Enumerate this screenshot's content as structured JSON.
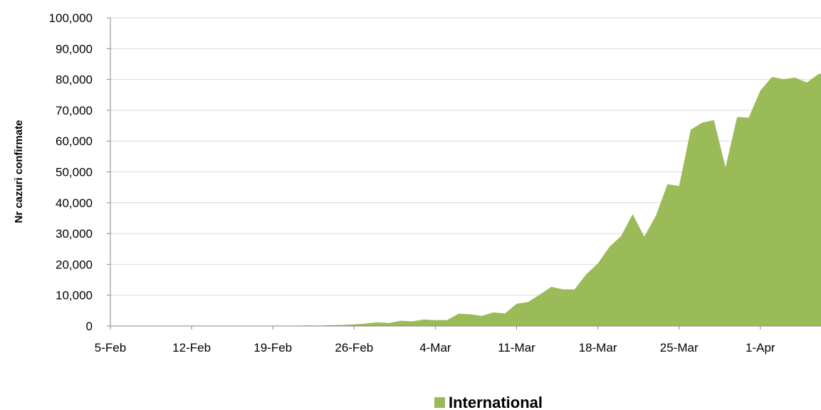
{
  "chart_data": {
    "type": "area",
    "title": "",
    "xlabel": "",
    "ylabel": "Nr cazuri confirmate",
    "ylim": [
      0,
      100000
    ],
    "y_ticks": [
      0,
      10000,
      20000,
      30000,
      40000,
      50000,
      60000,
      70000,
      80000,
      90000,
      100000
    ],
    "y_tick_labels": [
      "0",
      "10,000",
      "20,000",
      "30,000",
      "40,000",
      "50,000",
      "60,000",
      "70,000",
      "80,000",
      "90,000",
      "100,000"
    ],
    "x_tick_labels": [
      "5-Feb",
      "12-Feb",
      "19-Feb",
      "26-Feb",
      "4-Mar",
      "11-Mar",
      "18-Mar",
      "25-Mar",
      "1-Apr"
    ],
    "grid": true,
    "legend_position": "bottom",
    "series": [
      {
        "name": "International",
        "color": "#9bbb59",
        "x": [
          "5-Feb",
          "6-Feb",
          "7-Feb",
          "8-Feb",
          "9-Feb",
          "10-Feb",
          "11-Feb",
          "12-Feb",
          "13-Feb",
          "14-Feb",
          "15-Feb",
          "16-Feb",
          "17-Feb",
          "18-Feb",
          "19-Feb",
          "20-Feb",
          "21-Feb",
          "22-Feb",
          "23-Feb",
          "24-Feb",
          "25-Feb",
          "26-Feb",
          "27-Feb",
          "28-Feb",
          "29-Feb",
          "1-Mar",
          "2-Mar",
          "3-Mar",
          "4-Mar",
          "5-Mar",
          "6-Mar",
          "7-Mar",
          "8-Mar",
          "9-Mar",
          "10-Mar",
          "11-Mar",
          "12-Mar",
          "13-Mar",
          "14-Mar",
          "15-Mar",
          "16-Mar",
          "17-Mar",
          "18-Mar",
          "19-Mar",
          "20-Mar",
          "21-Mar",
          "22-Mar",
          "23-Mar",
          "24-Mar",
          "25-Mar",
          "26-Mar",
          "27-Mar",
          "28-Mar",
          "29-Mar",
          "30-Mar",
          "31-Mar",
          "1-Apr",
          "2-Apr",
          "3-Apr",
          "4-Apr",
          "5-Apr",
          "6-Apr",
          "7-Apr"
        ],
        "values": [
          50,
          60,
          40,
          50,
          60,
          50,
          40,
          50,
          30,
          40,
          50,
          30,
          40,
          50,
          40,
          50,
          100,
          200,
          150,
          300,
          350,
          500,
          800,
          1200,
          1000,
          1700,
          1500,
          2100,
          1900,
          1900,
          4000,
          3800,
          3300,
          4400,
          4100,
          7200,
          7800,
          10200,
          12700,
          11900,
          11900,
          16800,
          20300,
          25700,
          29200,
          36300,
          29000,
          35800,
          46000,
          45400,
          63700,
          66000,
          66800,
          51500,
          67800,
          67600,
          76400,
          80800,
          80100,
          80600,
          79000,
          81700,
          82500
        ]
      }
    ]
  }
}
